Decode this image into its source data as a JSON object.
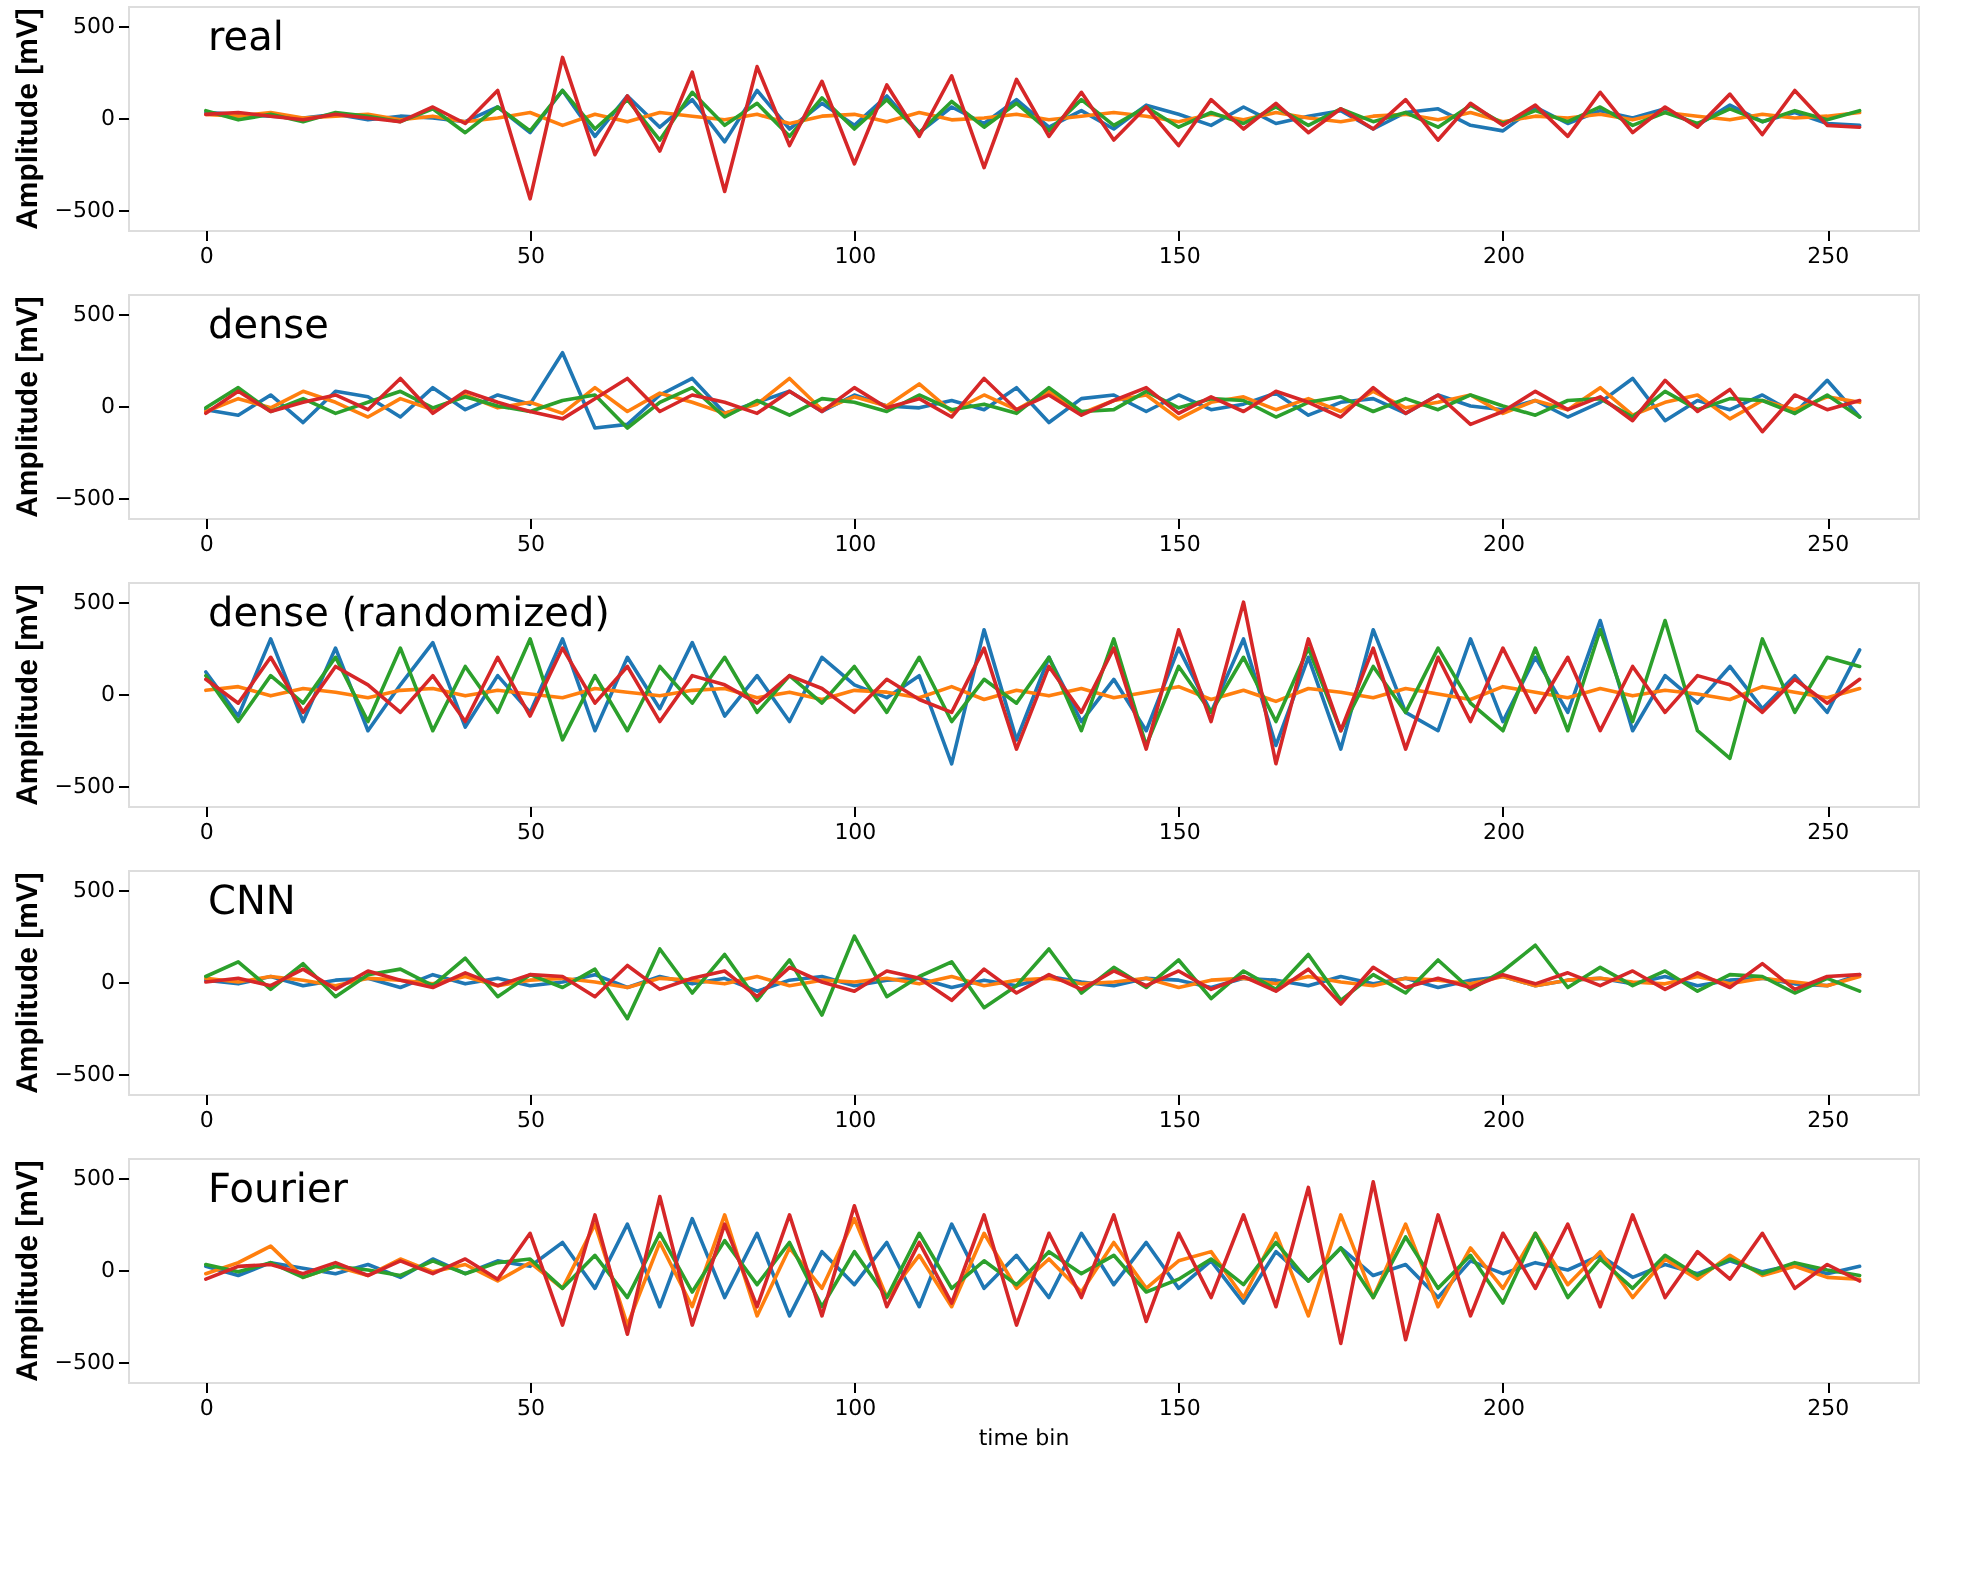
{
  "chart_data": [
    {
      "type": "line",
      "annotations": [
        "real"
      ],
      "ylabel": "Amplitude [mV]",
      "xlim": [
        -12,
        264
      ],
      "ylim": [
        -610,
        610
      ],
      "xticks": [
        0,
        50,
        100,
        150,
        200,
        250
      ],
      "yticks": [
        -500,
        0,
        500
      ],
      "grid": false,
      "legend": false,
      "line_style": "solid",
      "x": [
        0,
        5,
        10,
        15,
        20,
        25,
        30,
        35,
        40,
        45,
        50,
        55,
        60,
        65,
        70,
        75,
        80,
        85,
        90,
        95,
        100,
        105,
        110,
        115,
        120,
        125,
        130,
        135,
        140,
        145,
        150,
        155,
        160,
        165,
        170,
        175,
        180,
        185,
        190,
        195,
        200,
        205,
        210,
        215,
        220,
        225,
        230,
        235,
        240,
        245,
        250,
        255
      ],
      "series": [
        {
          "color": "#1f77b4",
          "values": [
            30,
            20,
            10,
            0,
            20,
            -10,
            10,
            0,
            -20,
            60,
            -80,
            150,
            -100,
            120,
            -50,
            100,
            -130,
            150,
            -60,
            80,
            -40,
            120,
            -80,
            60,
            -30,
            100,
            -50,
            40,
            -60,
            70,
            20,
            -40,
            60,
            -30,
            10,
            40,
            -60,
            30,
            50,
            -40,
            -70,
            60,
            -30,
            40,
            0,
            50,
            -40,
            70,
            -20,
            30,
            -30,
            -40
          ]
        },
        {
          "color": "#ff7f0e",
          "values": [
            20,
            10,
            30,
            0,
            10,
            20,
            -10,
            10,
            -20,
            0,
            30,
            -40,
            20,
            -20,
            30,
            10,
            -10,
            20,
            -30,
            10,
            20,
            -20,
            30,
            -10,
            0,
            20,
            -10,
            10,
            30,
            10,
            -20,
            20,
            -10,
            30,
            0,
            -20,
            10,
            20,
            -10,
            30,
            -20,
            10,
            0,
            20,
            -10,
            30,
            10,
            -10,
            20,
            0,
            10,
            30
          ]
        },
        {
          "color": "#2ca02c",
          "values": [
            40,
            -10,
            20,
            -20,
            30,
            10,
            -20,
            50,
            -80,
            60,
            -70,
            150,
            -60,
            100,
            -120,
            140,
            -40,
            80,
            -100,
            110,
            -60,
            100,
            -80,
            90,
            -50,
            80,
            -70,
            100,
            -40,
            60,
            -50,
            30,
            -30,
            60,
            -40,
            50,
            -20,
            30,
            -50,
            70,
            -30,
            40,
            -20,
            60,
            -40,
            30,
            -30,
            50,
            -20,
            40,
            -10,
            40
          ]
        },
        {
          "color": "#d62728",
          "values": [
            20,
            30,
            10,
            -10,
            20,
            0,
            -20,
            60,
            -30,
            150,
            -440,
            330,
            -200,
            120,
            -180,
            250,
            -400,
            280,
            -150,
            200,
            -250,
            180,
            -100,
            230,
            -270,
            210,
            -100,
            140,
            -120,
            60,
            -150,
            100,
            -60,
            80,
            -80,
            50,
            -60,
            100,
            -120,
            80,
            -40,
            70,
            -100,
            140,
            -80,
            60,
            -50,
            130,
            -90,
            150,
            -40,
            -50
          ]
        }
      ]
    },
    {
      "type": "line",
      "annotations": [
        "dense"
      ],
      "ylabel": "Amplitude [mV]",
      "xlim": [
        -12,
        264
      ],
      "ylim": [
        -610,
        610
      ],
      "xticks": [
        0,
        50,
        100,
        150,
        200,
        250
      ],
      "yticks": [
        -500,
        0,
        500
      ],
      "grid": false,
      "legend": false,
      "line_style": "solid",
      "x": [
        0,
        5,
        10,
        15,
        20,
        25,
        30,
        35,
        40,
        45,
        50,
        55,
        60,
        65,
        70,
        75,
        80,
        85,
        90,
        95,
        100,
        105,
        110,
        115,
        120,
        125,
        130,
        135,
        140,
        145,
        150,
        155,
        160,
        165,
        170,
        175,
        180,
        185,
        190,
        195,
        200,
        205,
        210,
        215,
        220,
        225,
        230,
        235,
        240,
        245,
        250,
        255
      ],
      "series": [
        {
          "color": "#1f77b4",
          "values": [
            -20,
            -50,
            60,
            -90,
            80,
            50,
            -60,
            100,
            -20,
            60,
            10,
            290,
            -120,
            -100,
            60,
            150,
            -40,
            20,
            80,
            -30,
            60,
            0,
            -10,
            30,
            -20,
            100,
            -90,
            40,
            60,
            -30,
            60,
            -20,
            10,
            70,
            -50,
            20,
            40,
            -40,
            60,
            0,
            -20,
            30,
            -60,
            20,
            150,
            -80,
            30,
            -20,
            60,
            -40,
            140,
            -60
          ]
        },
        {
          "color": "#ff7f0e",
          "values": [
            -30,
            40,
            -10,
            80,
            20,
            -60,
            40,
            -20,
            60,
            -10,
            20,
            -40,
            100,
            -30,
            70,
            20,
            -40,
            10,
            150,
            -20,
            50,
            0,
            120,
            -30,
            60,
            -20,
            80,
            -40,
            30,
            60,
            -70,
            20,
            50,
            -20,
            40,
            -30,
            80,
            -10,
            20,
            60,
            -40,
            30,
            -20,
            100,
            -50,
            20,
            60,
            -70,
            30,
            -20,
            50,
            20
          ]
        },
        {
          "color": "#2ca02c",
          "values": [
            -10,
            100,
            -30,
            40,
            -40,
            20,
            80,
            -10,
            50,
            0,
            -30,
            30,
            60,
            -120,
            20,
            100,
            -60,
            30,
            -50,
            40,
            20,
            -30,
            60,
            -20,
            10,
            -40,
            100,
            -30,
            -20,
            80,
            -10,
            40,
            30,
            -60,
            20,
            50,
            -30,
            40,
            -20,
            60,
            0,
            -50,
            30,
            40,
            -60,
            80,
            -20,
            40,
            30,
            -40,
            60,
            -60
          ]
        },
        {
          "color": "#d62728",
          "values": [
            -40,
            80,
            -30,
            20,
            60,
            -20,
            150,
            -40,
            80,
            20,
            -30,
            -70,
            40,
            150,
            -30,
            60,
            20,
            -40,
            80,
            -30,
            100,
            -10,
            40,
            -60,
            150,
            -20,
            60,
            -50,
            30,
            100,
            -40,
            50,
            -30,
            80,
            20,
            -60,
            100,
            -40,
            60,
            -100,
            -30,
            80,
            -20,
            50,
            -80,
            140,
            -30,
            90,
            -140,
            60,
            -20,
            30
          ]
        }
      ]
    },
    {
      "type": "line",
      "annotations": [
        "dense (randomized)"
      ],
      "ylabel": "Amplitude [mV]",
      "xlim": [
        -12,
        264
      ],
      "ylim": [
        -610,
        610
      ],
      "xticks": [
        0,
        50,
        100,
        150,
        200,
        250
      ],
      "yticks": [
        -500,
        0,
        500
      ],
      "grid": false,
      "legend": false,
      "line_style": "solid",
      "x": [
        0,
        5,
        10,
        15,
        20,
        25,
        30,
        35,
        40,
        45,
        50,
        55,
        60,
        65,
        70,
        75,
        80,
        85,
        90,
        95,
        100,
        105,
        110,
        115,
        120,
        125,
        130,
        135,
        140,
        145,
        150,
        155,
        160,
        165,
        170,
        175,
        180,
        185,
        190,
        195,
        200,
        205,
        210,
        215,
        220,
        225,
        230,
        235,
        240,
        245,
        250,
        255
      ],
      "series": [
        {
          "color": "#1f77b4",
          "values": [
            120,
            -120,
            300,
            -150,
            250,
            -200,
            50,
            280,
            -180,
            100,
            -100,
            300,
            -200,
            200,
            -80,
            280,
            -120,
            100,
            -150,
            200,
            50,
            -20,
            100,
            -380,
            350,
            -250,
            200,
            -150,
            80,
            -200,
            250,
            -100,
            300,
            -280,
            200,
            -300,
            350,
            -100,
            -200,
            300,
            -150,
            200,
            -100,
            400,
            -200,
            100,
            -50,
            150,
            -80,
            100,
            -100,
            240
          ]
        },
        {
          "color": "#ff7f0e",
          "values": [
            20,
            40,
            -10,
            30,
            10,
            -20,
            20,
            30,
            -10,
            20,
            0,
            -20,
            30,
            10,
            -10,
            20,
            30,
            -20,
            10,
            -30,
            20,
            10,
            -20,
            40,
            -30,
            20,
            -10,
            30,
            -20,
            10,
            40,
            -30,
            20,
            -40,
            30,
            10,
            -20,
            30,
            0,
            -30,
            40,
            10,
            -20,
            30,
            -10,
            20,
            0,
            -30,
            40,
            10,
            -20,
            30
          ]
        },
        {
          "color": "#2ca02c",
          "values": [
            100,
            -150,
            100,
            -50,
            200,
            -150,
            250,
            -200,
            150,
            -100,
            300,
            -250,
            100,
            -200,
            150,
            -50,
            200,
            -100,
            100,
            -50,
            150,
            -100,
            200,
            -150,
            80,
            -50,
            200,
            -200,
            300,
            -280,
            150,
            -100,
            200,
            -150,
            250,
            -200,
            150,
            -100,
            250,
            -50,
            -200,
            250,
            -200,
            350,
            -150,
            400,
            -200,
            -350,
            300,
            -100,
            200,
            150
          ]
        },
        {
          "color": "#d62728",
          "values": [
            80,
            -50,
            200,
            -100,
            150,
            50,
            -100,
            100,
            -150,
            200,
            -120,
            250,
            -50,
            150,
            -150,
            100,
            50,
            -50,
            100,
            30,
            -100,
            80,
            -30,
            -100,
            250,
            -300,
            150,
            -100,
            250,
            -300,
            350,
            -150,
            500,
            -380,
            300,
            -200,
            250,
            -300,
            200,
            -150,
            250,
            -100,
            200,
            -200,
            150,
            -100,
            100,
            50,
            -100,
            80,
            -50,
            80
          ]
        }
      ]
    },
    {
      "type": "line",
      "annotations": [
        "CNN"
      ],
      "ylabel": "Amplitude [mV]",
      "xlim": [
        -12,
        264
      ],
      "ylim": [
        -610,
        610
      ],
      "xticks": [
        0,
        50,
        100,
        150,
        200,
        250
      ],
      "yticks": [
        -500,
        0,
        500
      ],
      "grid": false,
      "legend": false,
      "line_style": "solid",
      "x": [
        0,
        5,
        10,
        15,
        20,
        25,
        30,
        35,
        40,
        45,
        50,
        55,
        60,
        65,
        70,
        75,
        80,
        85,
        90,
        95,
        100,
        105,
        110,
        115,
        120,
        125,
        130,
        135,
        140,
        145,
        150,
        155,
        160,
        165,
        170,
        175,
        180,
        185,
        190,
        195,
        200,
        205,
        210,
        215,
        220,
        225,
        230,
        235,
        240,
        245,
        250,
        255
      ],
      "series": [
        {
          "color": "#1f77b4",
          "values": [
            10,
            -10,
            30,
            -20,
            10,
            20,
            -30,
            40,
            -10,
            20,
            -20,
            0,
            40,
            -30,
            30,
            -10,
            20,
            -50,
            10,
            30,
            -20,
            10,
            20,
            -30,
            10,
            -20,
            30,
            0,
            -20,
            20,
            10,
            -30,
            20,
            10,
            -20,
            30,
            -10,
            20,
            -30,
            10,
            30,
            -20,
            10,
            20,
            -10,
            30,
            -20,
            10,
            20,
            -10,
            -20,
            40
          ]
        },
        {
          "color": "#ff7f0e",
          "values": [
            20,
            0,
            30,
            10,
            -20,
            20,
            10,
            -10,
            30,
            -20,
            10,
            20,
            0,
            -30,
            20,
            10,
            -10,
            30,
            -20,
            10,
            0,
            20,
            -10,
            30,
            -20,
            10,
            20,
            -10,
            0,
            20,
            -30,
            10,
            20,
            -10,
            30,
            0,
            -20,
            20,
            10,
            -10,
            30,
            -20,
            10,
            20,
            0,
            -10,
            30,
            -10,
            20,
            0,
            -20,
            30
          ]
        },
        {
          "color": "#2ca02c",
          "values": [
            30,
            110,
            -40,
            100,
            -80,
            40,
            70,
            -20,
            130,
            -80,
            40,
            -30,
            70,
            -200,
            180,
            -60,
            150,
            -100,
            120,
            -180,
            250,
            -80,
            30,
            110,
            -140,
            -20,
            180,
            -60,
            80,
            -30,
            120,
            -90,
            60,
            -40,
            150,
            -100,
            40,
            -60,
            120,
            -40,
            60,
            200,
            -30,
            80,
            -20,
            60,
            -50,
            40,
            30,
            -60,
            20,
            -50
          ]
        },
        {
          "color": "#d62728",
          "values": [
            0,
            20,
            -20,
            70,
            -40,
            60,
            10,
            -30,
            50,
            -20,
            40,
            30,
            -80,
            90,
            -40,
            20,
            60,
            -80,
            80,
            0,
            -50,
            60,
            20,
            -100,
            70,
            -60,
            40,
            -40,
            60,
            -20,
            60,
            -40,
            30,
            -50,
            70,
            -120,
            80,
            -30,
            20,
            -30,
            40,
            -10,
            50,
            -20,
            60,
            -40,
            50,
            -30,
            100,
            -40,
            30,
            40
          ]
        }
      ]
    },
    {
      "type": "line",
      "annotations": [
        "Fourier"
      ],
      "xlabel": "time bin",
      "ylabel": "Amplitude [mV]",
      "xlim": [
        -12,
        264
      ],
      "ylim": [
        -610,
        610
      ],
      "xticks": [
        0,
        50,
        100,
        150,
        200,
        250
      ],
      "yticks": [
        -500,
        0,
        500
      ],
      "grid": false,
      "legend": false,
      "line_style": "solid",
      "x": [
        0,
        5,
        10,
        15,
        20,
        25,
        30,
        35,
        40,
        45,
        50,
        55,
        60,
        65,
        70,
        75,
        80,
        85,
        90,
        95,
        100,
        105,
        110,
        115,
        120,
        125,
        130,
        135,
        140,
        145,
        150,
        155,
        160,
        165,
        170,
        175,
        180,
        185,
        190,
        195,
        200,
        205,
        210,
        215,
        220,
        225,
        230,
        235,
        240,
        245,
        250,
        255
      ],
      "series": [
        {
          "color": "#1f77b4",
          "values": [
            20,
            -30,
            40,
            10,
            -20,
            30,
            -40,
            60,
            -20,
            50,
            20,
            150,
            -100,
            250,
            -200,
            280,
            -150,
            200,
            -250,
            100,
            -80,
            150,
            -200,
            250,
            -100,
            80,
            -150,
            200,
            -80,
            150,
            -100,
            50,
            -180,
            100,
            -60,
            120,
            -30,
            30,
            -150,
            50,
            -20,
            40,
            0,
            80,
            -40,
            30,
            -20,
            50,
            -10,
            30,
            -20,
            20
          ]
        },
        {
          "color": "#ff7f0e",
          "values": [
            -20,
            40,
            130,
            -40,
            20,
            -30,
            60,
            -10,
            30,
            -60,
            40,
            -100,
            250,
            -300,
            150,
            -200,
            300,
            -250,
            120,
            -100,
            280,
            -150,
            80,
            -200,
            200,
            -100,
            60,
            -120,
            150,
            -100,
            50,
            100,
            -150,
            200,
            -250,
            300,
            -150,
            250,
            -200,
            120,
            -100,
            200,
            -80,
            100,
            -150,
            60,
            -50,
            80,
            -30,
            20,
            -40,
            -50
          ]
        },
        {
          "color": "#2ca02c",
          "values": [
            30,
            -10,
            40,
            -40,
            20,
            0,
            -30,
            50,
            -20,
            40,
            60,
            -100,
            80,
            -150,
            200,
            -120,
            160,
            -80,
            150,
            -200,
            100,
            -150,
            200,
            -100,
            50,
            -80,
            100,
            -20,
            80,
            -120,
            -50,
            60,
            -80,
            150,
            -60,
            120,
            -150,
            180,
            -100,
            80,
            -180,
            200,
            -150,
            60,
            -100,
            80,
            -30,
            60,
            -20,
            40,
            0,
            -30
          ]
        },
        {
          "color": "#d62728",
          "values": [
            -50,
            20,
            30,
            -20,
            40,
            -30,
            50,
            -20,
            60,
            -50,
            200,
            -300,
            300,
            -350,
            400,
            -300,
            250,
            -200,
            300,
            -250,
            350,
            -200,
            150,
            -180,
            300,
            -300,
            200,
            -150,
            300,
            -280,
            200,
            -150,
            300,
            -200,
            450,
            -400,
            480,
            -380,
            300,
            -250,
            200,
            -100,
            250,
            -200,
            300,
            -150,
            100,
            -50,
            200,
            -100,
            30,
            -60
          ]
        }
      ]
    }
  ]
}
